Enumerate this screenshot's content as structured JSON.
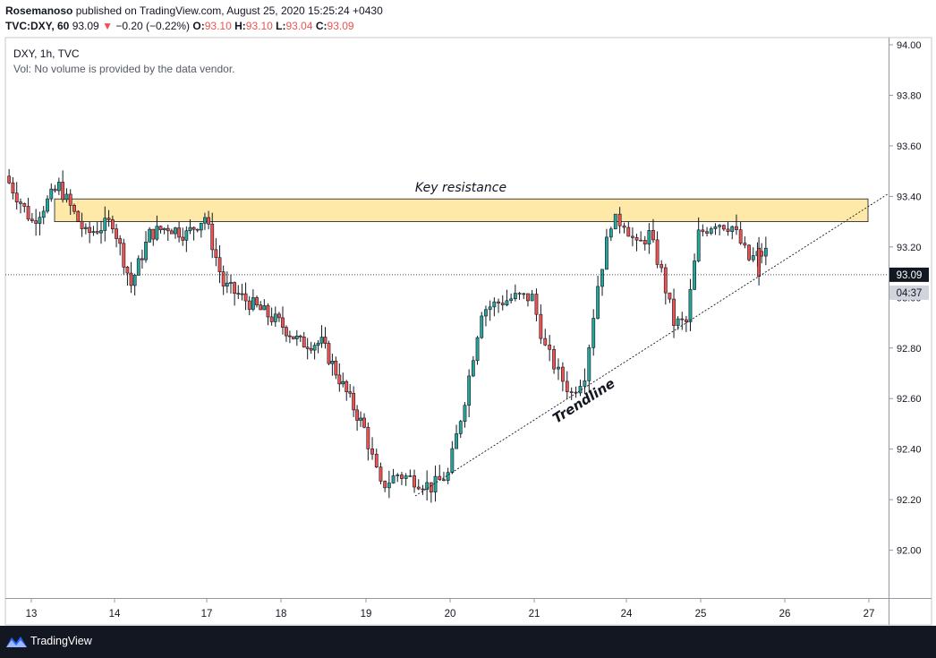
{
  "header": {
    "author": "Rosemanoso",
    "published_text": "published on TradingView.com, August 25, 2020 15:25:24 +0430",
    "symbol": "TVC:DXY, 60",
    "last": "93.09",
    "change_arrow": "▼",
    "change": "−0.20 (−0.22%)",
    "o_label": "O:",
    "o_value": "93.10",
    "h_label": "H:",
    "h_value": "93.10",
    "l_label": "L:",
    "l_value": "93.04",
    "c_label": "C:",
    "c_value": "93.09"
  },
  "legend": {
    "line1": "DXY, 1h, TVC",
    "line2": "Vol: No volume is provided by the data vendor."
  },
  "footer": {
    "brand": "TradingView"
  },
  "colors": {
    "up": "#26a69a",
    "down": "#ef5350",
    "candle": "#131722",
    "zone": "#ffe9a8",
    "price_tag": "#131722",
    "timer_tag": "#d1d4dc"
  },
  "chart_data": {
    "type": "candlestick",
    "symbol": "DXY",
    "interval": "1h",
    "ylim": [
      91.8,
      94.0
    ],
    "y_ticks": [
      "94.00",
      "93.80",
      "93.60",
      "93.40",
      "93.20",
      "93.00",
      "92.80",
      "92.60",
      "92.40",
      "92.20",
      "92.00"
    ],
    "x_ticks": [
      "13",
      "14",
      "17",
      "18",
      "19",
      "20",
      "21",
      "24",
      "25",
      "26",
      "27"
    ],
    "last_price": "93.09",
    "countdown": "04:37",
    "resistance_zone": {
      "label": "Key resistance",
      "low": 93.3,
      "high": 93.39
    },
    "trendline": {
      "label": "Trendline",
      "from": {
        "x": "19",
        "y": 92.25
      },
      "to": {
        "x": "27",
        "y": 93.39
      }
    },
    "price_path": [
      [
        "13",
        93.48
      ],
      [
        "13",
        93.3
      ],
      [
        "13",
        93.44
      ],
      [
        "13",
        93.25
      ],
      [
        "14",
        93.3
      ],
      [
        "14",
        93.05
      ],
      [
        "14",
        93.25
      ],
      [
        "14",
        93.28
      ],
      [
        "14",
        93.25
      ],
      [
        "17",
        93.32
      ],
      [
        "17",
        93.05
      ],
      [
        "17",
        93.0
      ],
      [
        "17",
        92.95
      ],
      [
        "18",
        92.9
      ],
      [
        "18",
        92.82
      ],
      [
        "18",
        92.82
      ],
      [
        "18",
        92.65
      ],
      [
        "19",
        92.48
      ],
      [
        "19",
        92.25
      ],
      [
        "19",
        92.3
      ],
      [
        "19",
        92.28
      ],
      [
        "19",
        92.25
      ],
      [
        "20",
        92.3
      ],
      [
        "20",
        92.6
      ],
      [
        "20",
        92.95
      ],
      [
        "20",
        92.98
      ],
      [
        "20",
        93.0
      ],
      [
        "21",
        93.0
      ],
      [
        "21",
        92.8
      ],
      [
        "21",
        92.7
      ],
      [
        "21",
        92.62
      ],
      [
        "21",
        92.7
      ],
      [
        "21",
        93.05
      ],
      [
        "21",
        93.3
      ],
      [
        "24",
        93.3
      ],
      [
        "24",
        93.2
      ],
      [
        "24",
        93.25
      ],
      [
        "24",
        93.1
      ],
      [
        "24",
        92.9
      ],
      [
        "24",
        92.9
      ],
      [
        "25",
        93.25
      ],
      [
        "25",
        93.3
      ],
      [
        "25",
        93.28
      ],
      [
        "25",
        93.15
      ],
      [
        "25",
        93.18
      ],
      [
        "26",
        93.09
      ]
    ]
  }
}
